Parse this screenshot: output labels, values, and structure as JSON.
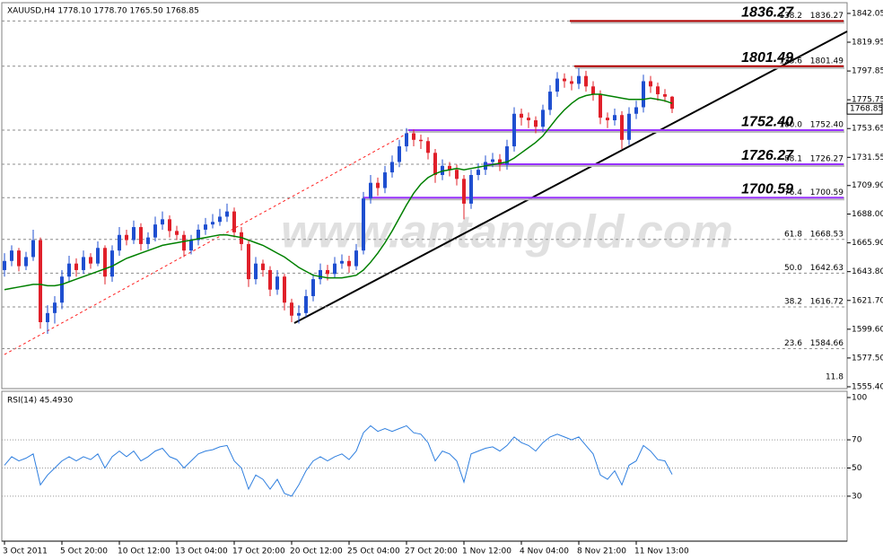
{
  "chart_data": {
    "type": "candlestick",
    "title": "XAUUSD,H4  1778.10 1778.70 1765.50 1768.85",
    "x": [
      "3 Oct 2011",
      null,
      null,
      null,
      null,
      null,
      null,
      null,
      "5 Oct 20:00",
      null,
      null,
      null,
      null,
      null,
      null,
      null,
      "10 Oct 12:00",
      null,
      null,
      null,
      null,
      null,
      null,
      null,
      "13 Oct 04:00",
      null,
      null,
      null,
      null,
      null,
      null,
      null,
      "17 Oct 20:00",
      null,
      null,
      null,
      null,
      null,
      null,
      null,
      "20 Oct 12:00",
      null,
      null,
      null,
      null,
      null,
      null,
      null,
      "25 Oct 04:00",
      null,
      null,
      null,
      null,
      null,
      null,
      null,
      "27 Oct 20:00",
      null,
      null,
      null,
      null,
      null,
      null,
      null,
      "1 Nov 12:00",
      null,
      null,
      null,
      null,
      null,
      null,
      null,
      "4 Nov 04:00",
      null,
      null,
      null,
      null,
      null,
      null,
      null,
      "8 Nov 21:00",
      null,
      null,
      null,
      null,
      null,
      null,
      null,
      "11 Nov 13:00",
      null,
      null,
      null,
      null,
      null
    ],
    "series": [
      {
        "up_color": "#1f4fd0",
        "down_color": "#e0202a",
        "ohlc": [
          [
            1645,
            1658,
            1640,
            1652
          ],
          [
            1652,
            1664,
            1648,
            1660
          ],
          [
            1660,
            1662,
            1644,
            1648
          ],
          [
            1648,
            1659,
            1645,
            1655
          ],
          [
            1655,
            1676,
            1652,
            1668
          ],
          [
            1668,
            1670,
            1600,
            1605
          ],
          [
            1605,
            1618,
            1596,
            1612
          ],
          [
            1612,
            1625,
            1604,
            1620
          ],
          [
            1620,
            1645,
            1615,
            1640
          ],
          [
            1640,
            1656,
            1636,
            1650
          ],
          [
            1650,
            1654,
            1640,
            1645
          ],
          [
            1645,
            1660,
            1642,
            1655
          ],
          [
            1655,
            1658,
            1646,
            1650
          ],
          [
            1650,
            1667,
            1648,
            1662
          ],
          [
            1662,
            1664,
            1634,
            1640
          ],
          [
            1640,
            1664,
            1636,
            1660
          ],
          [
            1660,
            1678,
            1656,
            1672
          ],
          [
            1672,
            1676,
            1664,
            1668
          ],
          [
            1668,
            1683,
            1665,
            1678
          ],
          [
            1678,
            1681,
            1660,
            1665
          ],
          [
            1665,
            1674,
            1661,
            1670
          ],
          [
            1670,
            1686,
            1667,
            1680
          ],
          [
            1680,
            1690,
            1676,
            1684
          ],
          [
            1684,
            1687,
            1670,
            1675
          ],
          [
            1675,
            1679,
            1668,
            1672
          ],
          [
            1672,
            1675,
            1655,
            1660
          ],
          [
            1660,
            1672,
            1657,
            1668
          ],
          [
            1668,
            1680,
            1664,
            1676
          ],
          [
            1676,
            1685,
            1672,
            1680
          ],
          [
            1680,
            1688,
            1677,
            1682
          ],
          [
            1682,
            1692,
            1679,
            1686
          ],
          [
            1686,
            1696,
            1682,
            1690
          ],
          [
            1690,
            1693,
            1670,
            1674
          ],
          [
            1674,
            1678,
            1660,
            1665
          ],
          [
            1665,
            1668,
            1632,
            1638
          ],
          [
            1638,
            1655,
            1634,
            1650
          ],
          [
            1650,
            1653,
            1640,
            1645
          ],
          [
            1645,
            1648,
            1625,
            1630
          ],
          [
            1630,
            1645,
            1626,
            1640
          ],
          [
            1640,
            1642,
            1614,
            1620
          ],
          [
            1620,
            1623,
            1605,
            1610
          ],
          [
            1610,
            1618,
            1604,
            1612
          ],
          [
            1612,
            1630,
            1609,
            1625
          ],
          [
            1625,
            1642,
            1621,
            1638
          ],
          [
            1638,
            1650,
            1634,
            1645
          ],
          [
            1645,
            1649,
            1637,
            1642
          ],
          [
            1642,
            1655,
            1639,
            1650
          ],
          [
            1650,
            1657,
            1646,
            1652
          ],
          [
            1652,
            1656,
            1643,
            1648
          ],
          [
            1648,
            1665,
            1645,
            1660
          ],
          [
            1660,
            1705,
            1657,
            1700
          ],
          [
            1700,
            1718,
            1696,
            1712
          ],
          [
            1712,
            1716,
            1702,
            1708
          ],
          [
            1708,
            1725,
            1704,
            1720
          ],
          [
            1720,
            1733,
            1716,
            1728
          ],
          [
            1728,
            1745,
            1724,
            1740
          ],
          [
            1740,
            1754,
            1736,
            1750
          ],
          [
            1750,
            1753,
            1740,
            1745
          ],
          [
            1745,
            1749,
            1738,
            1744
          ],
          [
            1744,
            1747,
            1730,
            1735
          ],
          [
            1735,
            1738,
            1712,
            1718
          ],
          [
            1718,
            1730,
            1714,
            1725
          ],
          [
            1725,
            1728,
            1717,
            1722
          ],
          [
            1722,
            1726,
            1710,
            1715
          ],
          [
            1715,
            1718,
            1684,
            1696
          ],
          [
            1696,
            1722,
            1692,
            1718
          ],
          [
            1718,
            1727,
            1714,
            1722
          ],
          [
            1722,
            1733,
            1718,
            1728
          ],
          [
            1728,
            1735,
            1724,
            1730
          ],
          [
            1730,
            1734,
            1721,
            1726
          ],
          [
            1726,
            1745,
            1722,
            1740
          ],
          [
            1740,
            1770,
            1736,
            1765
          ],
          [
            1765,
            1769,
            1756,
            1762
          ],
          [
            1762,
            1766,
            1754,
            1760
          ],
          [
            1760,
            1763,
            1750,
            1755
          ],
          [
            1755,
            1772,
            1751,
            1768
          ],
          [
            1768,
            1787,
            1764,
            1782
          ],
          [
            1782,
            1797,
            1778,
            1792
          ],
          [
            1792,
            1796,
            1785,
            1790
          ],
          [
            1790,
            1794,
            1783,
            1788
          ],
          [
            1788,
            1800,
            1784,
            1794
          ],
          [
            1794,
            1798,
            1782,
            1786
          ],
          [
            1786,
            1790,
            1775,
            1780
          ],
          [
            1780,
            1783,
            1757,
            1762
          ],
          [
            1762,
            1766,
            1754,
            1760
          ],
          [
            1760,
            1769,
            1756,
            1764
          ],
          [
            1764,
            1767,
            1738,
            1745
          ],
          [
            1745,
            1770,
            1741,
            1765
          ],
          [
            1765,
            1775,
            1761,
            1770
          ],
          [
            1770,
            1795,
            1766,
            1790
          ],
          [
            1790,
            1794,
            1781,
            1786
          ],
          [
            1786,
            1789,
            1775,
            1780
          ],
          [
            1780,
            1784,
            1774,
            1778.1
          ],
          [
            1778.1,
            1778.7,
            1765.5,
            1768.85
          ]
        ]
      }
    ],
    "ma": {
      "color": "#008000",
      "values": [
        1630,
        1631,
        1632,
        1633,
        1634,
        1634,
        1633,
        1633,
        1634,
        1636,
        1638,
        1640,
        1642,
        1644,
        1646,
        1648,
        1651,
        1654,
        1656,
        1658,
        1660,
        1662,
        1664,
        1665,
        1666,
        1667,
        1668,
        1669,
        1670,
        1671,
        1672,
        1672,
        1671,
        1670,
        1668,
        1666,
        1664,
        1661,
        1658,
        1655,
        1651,
        1647,
        1644,
        1641,
        1640,
        1639,
        1639,
        1639,
        1640,
        1641,
        1645,
        1651,
        1658,
        1666,
        1675,
        1685,
        1695,
        1704,
        1711,
        1716,
        1719,
        1721,
        1722,
        1723,
        1722,
        1723,
        1724,
        1725,
        1726,
        1727,
        1728,
        1731,
        1735,
        1739,
        1743,
        1748,
        1755,
        1762,
        1768,
        1773,
        1777,
        1779,
        1780,
        1780,
        1779,
        1778,
        1777,
        1776,
        1776,
        1776,
        1777,
        1776,
        1775,
        1773
      ]
    },
    "ylim": [
      1554.7,
      1848.9
    ],
    "yticks": [
      1842.05,
      1819.95,
      1797.85,
      1775.75,
      1753.65,
      1731.55,
      {
        "value": 1709.9,
        "label": "1709.90"
      },
      {
        "value": 1688,
        "label": "1688.00"
      },
      {
        "value": 1665.9,
        "label": "1665.90"
      },
      {
        "value": 1643.8,
        "label": "1643.80"
      },
      {
        "value": 1621.7,
        "label": "1621.70"
      },
      {
        "value": 1599.6,
        "label": "1599.60"
      },
      {
        "value": 1577.5,
        "label": "1577.50"
      },
      {
        "value": 1555.4,
        "label": "1555.40"
      }
    ],
    "grid": false,
    "last_price": 1768.85,
    "fib_levels": [
      {
        "ratio": 138.2,
        "price": 1836.27
      },
      {
        "ratio": 123.6,
        "price": 1801.49
      },
      {
        "ratio": {
          "value": 100,
          "label": "100.0"
        },
        "price": {
          "value": 1752.4,
          "label": "1752.40"
        }
      },
      {
        "ratio": 88.1,
        "price": 1726.27
      },
      {
        "ratio": 76.4,
        "price": 1700.59
      },
      {
        "ratio": 61.8,
        "price": 1668.53
      },
      {
        "ratio": {
          "value": 50,
          "label": "50.0"
        },
        "price": 1642.63
      },
      {
        "ratio": 38.2,
        "price": 1616.72
      },
      {
        "ratio": 23.6,
        "price": 1584.66
      },
      {
        "ratio": 11.8
      }
    ],
    "key_levels": [
      {
        "price": 1836.27,
        "color": "#b00000"
      },
      {
        "price": 1801.49,
        "color": "#b00000"
      },
      {
        "price": {
          "value": 1752.4,
          "label": "1752.40"
        },
        "color": "#9933ff"
      },
      {
        "price": 1726.27,
        "color": "#9933ff"
      },
      {
        "price": 1700.59,
        "color": "#9933ff"
      }
    ],
    "watermark": "www.antangold.com",
    "rsi": {
      "title": "RSI(14) 45.4930",
      "color": "#2f7fdf",
      "ylim": [
        -1.9,
        103.8
      ],
      "yticks": [
        100,
        70,
        50,
        30
      ],
      "grid": true,
      "values": [
        52,
        58,
        55,
        57,
        60,
        38,
        45,
        50,
        55,
        58,
        55,
        58,
        56,
        60,
        50,
        58,
        62,
        58,
        62,
        55,
        58,
        62,
        64,
        58,
        56,
        50,
        55,
        60,
        62,
        63,
        65,
        66,
        55,
        50,
        35,
        45,
        42,
        35,
        42,
        32,
        30,
        38,
        48,
        55,
        58,
        55,
        58,
        60,
        56,
        62,
        75,
        80,
        76,
        78,
        76,
        78,
        80,
        75,
        74,
        68,
        55,
        62,
        60,
        55,
        40,
        60,
        62,
        64,
        65,
        62,
        66,
        72,
        68,
        66,
        62,
        68,
        72,
        74,
        72,
        70,
        72,
        66,
        60,
        45,
        42,
        48,
        38,
        52,
        55,
        66,
        62,
        56,
        55,
        45.493
      ]
    }
  }
}
